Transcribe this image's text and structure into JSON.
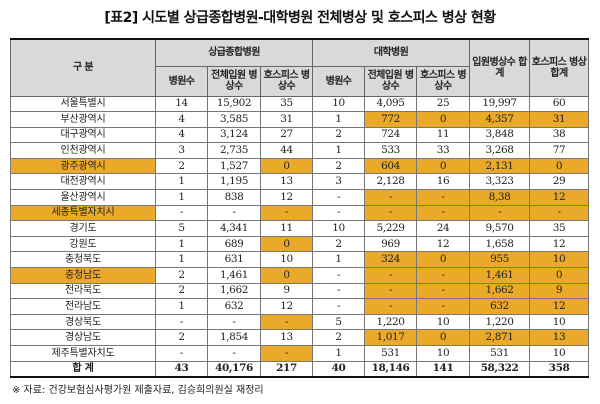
{
  "title": "[표2] 시도별 상급종합병원-대학병원 전체병상 및 호스피스 병상 현황",
  "header": {
    "region": "구 분",
    "group_tertiary": "상급종합병원",
    "group_university": "대학병원",
    "total_beds": "입원병상수 합계",
    "total_hospice": "호스피스 병상합계",
    "sub": [
      "병원수",
      "전체입원 병상수",
      "호스피스 병상수",
      "병원수",
      "전체입원 병상수",
      "호스피스 병상수"
    ]
  },
  "highlight_color": "#eba92a",
  "rows": [
    {
      "name": "서울특별시",
      "v": [
        "14",
        "15,902",
        "35",
        "10",
        "4,095",
        "25",
        "19,997",
        "60"
      ],
      "hl": []
    },
    {
      "name": "부산광역시",
      "v": [
        "4",
        "3,585",
        "31",
        "1",
        "772",
        "0",
        "4,357",
        "31"
      ],
      "hl": [
        5,
        6,
        7,
        8
      ]
    },
    {
      "name": "대구광역시",
      "v": [
        "4",
        "3,124",
        "27",
        "2",
        "724",
        "11",
        "3,848",
        "38"
      ],
      "hl": []
    },
    {
      "name": "인천광역시",
      "v": [
        "3",
        "2,735",
        "44",
        "1",
        "533",
        "33",
        "3,268",
        "77"
      ],
      "hl": []
    },
    {
      "name": "광주광역시",
      "v": [
        "2",
        "1,527",
        "0",
        "2",
        "604",
        "0",
        "2,131",
        "0"
      ],
      "hl": [
        0,
        3,
        5,
        6,
        7,
        8
      ]
    },
    {
      "name": "대전광역시",
      "v": [
        "1",
        "1,195",
        "13",
        "3",
        "2,128",
        "16",
        "3,323",
        "29"
      ],
      "hl": []
    },
    {
      "name": "울산광역시",
      "v": [
        "1",
        "838",
        "12",
        "-",
        "-",
        "-",
        "8,38",
        "12"
      ],
      "hl": [
        5,
        6,
        7,
        8
      ]
    },
    {
      "name": "세종특별자치시",
      "v": [
        "-",
        "-",
        "-",
        "-",
        "-",
        "-",
        "-",
        "-"
      ],
      "hl": [
        0,
        3,
        5,
        6,
        7,
        8
      ]
    },
    {
      "name": "경기도",
      "v": [
        "5",
        "4,341",
        "11",
        "10",
        "5,229",
        "24",
        "9,570",
        "35"
      ],
      "hl": []
    },
    {
      "name": "강원도",
      "v": [
        "1",
        "689",
        "0",
        "2",
        "969",
        "12",
        "1,658",
        "12"
      ],
      "hl": [
        3
      ]
    },
    {
      "name": "충청북도",
      "v": [
        "1",
        "631",
        "10",
        "1",
        "324",
        "0",
        "955",
        "10"
      ],
      "hl": [
        5,
        6,
        7,
        8
      ]
    },
    {
      "name": "충청남도",
      "v": [
        "2",
        "1,461",
        "0",
        "-",
        "-",
        "-",
        "1,461",
        "0"
      ],
      "hl": [
        0,
        3,
        5,
        6,
        7,
        8
      ]
    },
    {
      "name": "전라북도",
      "v": [
        "2",
        "1,662",
        "9",
        "-",
        "-",
        "-",
        "1,662",
        "9"
      ],
      "hl": [
        5,
        6,
        7,
        8
      ]
    },
    {
      "name": "전라남도",
      "v": [
        "1",
        "632",
        "12",
        "-",
        "-",
        "-",
        "632",
        "12"
      ],
      "hl": [
        5,
        6,
        7,
        8
      ]
    },
    {
      "name": "경상북도",
      "v": [
        "-",
        "-",
        "-",
        "5",
        "1,220",
        "10",
        "1,220",
        "10"
      ],
      "hl": [
        3
      ]
    },
    {
      "name": "경상남도",
      "v": [
        "2",
        "1,854",
        "13",
        "2",
        "1,017",
        "0",
        "2,871",
        "13"
      ],
      "hl": [
        5,
        6,
        7,
        8
      ]
    },
    {
      "name": "제주특별자치도",
      "v": [
        "-",
        "-",
        "-",
        "1",
        "531",
        "10",
        "531",
        "10"
      ],
      "hl": [
        3
      ]
    }
  ],
  "total": {
    "name": "합 계",
    "v": [
      "43",
      "40,176",
      "217",
      "40",
      "18,146",
      "141",
      "58,322",
      "358"
    ]
  },
  "footnote": "※ 자료: 건강보험심사평가원 제출자료, 김승희의원실 재정리"
}
